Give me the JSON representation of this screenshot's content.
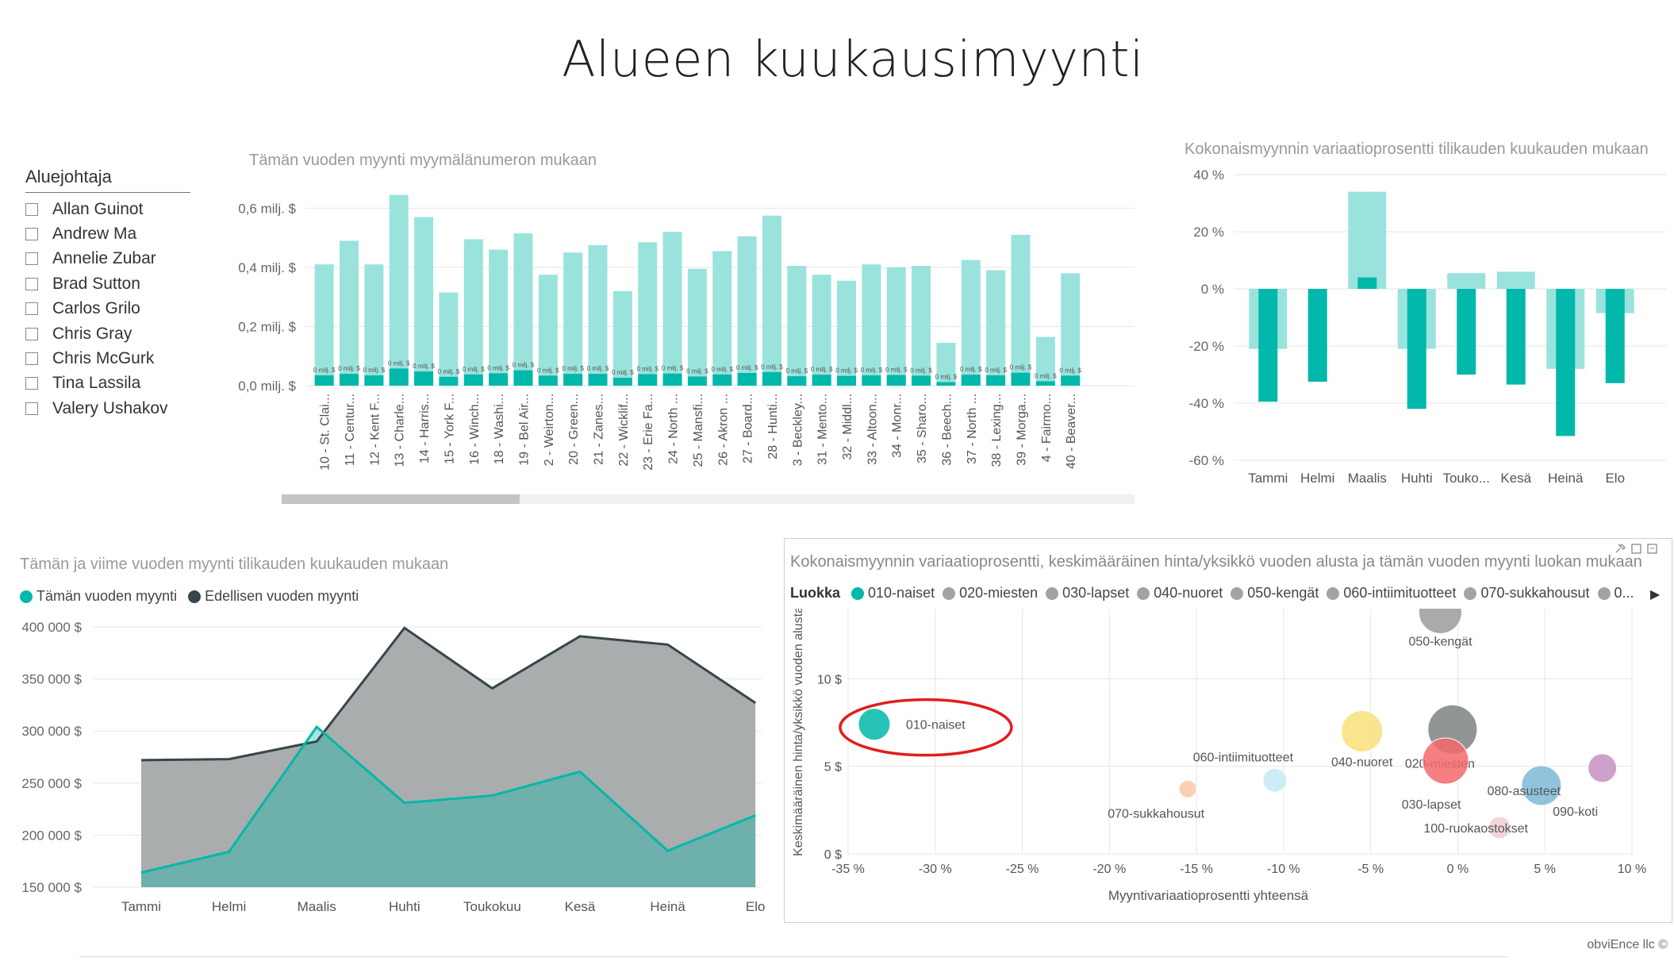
{
  "page": {
    "title": "Alueen kuukausimyynti",
    "footer": "obviEnce llc ©"
  },
  "slicer": {
    "title": "Aluejohtaja",
    "items": [
      "Allan Guinot",
      "Andrew Ma",
      "Annelie Zubar",
      "Brad Sutton",
      "Carlos Grilo",
      "Chris Gray",
      "Chris McGurk",
      "Tina Lassila",
      "Valery Ushakov"
    ]
  },
  "colors": {
    "teal": "#01B8AA",
    "teal_light": "#9AE3DD",
    "dark": "#374649",
    "grey_area": "#A9ADAE",
    "grid": "#e6e6e6"
  },
  "chart_data": [
    {
      "id": "store_bar",
      "type": "bar",
      "title": "Tämän vuoden myynti myymälänumeron mukaan",
      "categories": [
        "10 - St. Clai...",
        "11 - Centur...",
        "12 - Kent F...",
        "13 - Charle...",
        "14 - Harris...",
        "15 - York F...",
        "16 - Winch...",
        "18 - Washi...",
        "19 - Bel Air...",
        "2 - Weirton...",
        "20 - Green...",
        "21 - Zanes...",
        "22 - Wicklif...",
        "23 - Erie Fa...",
        "24 - North ...",
        "25 - Mansfi...",
        "26 - Akron ...",
        "27 - Board...",
        "28 - Hunti...",
        "3 - Beckley...",
        "31 - Mento...",
        "32 - Middl...",
        "33 - Altoon...",
        "34 - Monr...",
        "35 - Sharo...",
        "36 - Beech...",
        "37 - North ...",
        "38 - Lexing...",
        "39 - Morga...",
        "4 - Fairmo...",
        "40 - Beaver..."
      ],
      "series": [
        {
          "values": [
            0.41,
            0.49,
            0.41,
            0.645,
            0.57,
            0.315,
            0.495,
            0.46,
            0.515,
            0.375,
            0.45,
            0.475,
            0.32,
            0.485,
            0.52,
            0.395,
            0.455,
            0.505,
            0.575,
            0.405,
            0.375,
            0.355,
            0.41,
            0.4,
            0.405,
            0.145,
            0.425,
            0.39,
            0.51,
            0.165,
            0.38
          ]
        },
        {
          "values": [
            0.035,
            0.04,
            0.035,
            0.058,
            0.048,
            0.03,
            0.038,
            0.042,
            0.052,
            0.034,
            0.04,
            0.04,
            0.027,
            0.039,
            0.041,
            0.031,
            0.038,
            0.043,
            0.046,
            0.032,
            0.037,
            0.033,
            0.035,
            0.036,
            0.034,
            0.012,
            0.037,
            0.035,
            0.044,
            0.015,
            0.034
          ]
        }
      ],
      "data_label": "0 milj. $",
      "yticks": [
        "0,0 milj. $",
        "0,2 milj. $",
        "0,4 milj. $",
        "0,6 milj. $"
      ],
      "ylim": [
        0,
        0.66
      ]
    },
    {
      "id": "variance_bar",
      "type": "bar",
      "title": "Kokonaismyynnin variaatioprosentti tilikauden kuukauden mukaan",
      "categories": [
        "Tammi",
        "Helmi",
        "Maalis",
        "Huhti",
        "Touko...",
        "Kesä",
        "Heinä",
        "Elo"
      ],
      "series": [
        {
          "values": [
            -21,
            0,
            34,
            -21,
            5.5,
            6,
            -28,
            -8.5
          ]
        },
        {
          "values": [
            -39.5,
            -32.5,
            4,
            -42,
            -30,
            -33.5,
            -51.5,
            -33
          ]
        }
      ],
      "yticks": [
        "40 %",
        "20 %",
        "0 %",
        "-20 %",
        "-40 %",
        "-60 %"
      ],
      "ylim": [
        -60,
        40
      ]
    },
    {
      "id": "sales_area",
      "type": "area",
      "title": "Tämän ja viime vuoden myynti tilikauden kuukauden mukaan",
      "categories": [
        "Tammi",
        "Helmi",
        "Maalis",
        "Huhti",
        "Toukokuu",
        "Kesä",
        "Heinä",
        "Elo"
      ],
      "series": [
        {
          "name": "Tämän vuoden myynti",
          "values": [
            164000,
            184000,
            304000,
            231000,
            238000,
            261000,
            185000,
            219000
          ]
        },
        {
          "name": "Edellisen vuoden myynti",
          "values": [
            272000,
            273000,
            290000,
            399000,
            341000,
            391000,
            383000,
            327000
          ]
        }
      ],
      "yticks": [
        "150 000 $",
        "200 000 $",
        "250 000 $",
        "300 000 $",
        "350 000 $",
        "400 000 $"
      ],
      "ylim": [
        150000,
        400000
      ]
    },
    {
      "id": "category_scatter",
      "type": "scatter",
      "title": "Kokonaismyynnin variaatioprosentti, keskimääräinen hinta/yksikkö vuoden alusta ja tämän vuoden myynti luokan mukaan",
      "legend_title": "Luokka",
      "legend": [
        "010-naiset",
        "020-miesten",
        "030-lapset",
        "040-nuoret",
        "050-kengät",
        "060-intiimituotteet",
        "070-sukkahousut",
        "0..."
      ],
      "xlabel": "Myyntivariaatioprosentti yhteensä",
      "ylabel": "Keskimääräinen hinta/yksikkö vuoden alusta",
      "xticks": [
        "-35 %",
        "-30 %",
        "-25 %",
        "-20 %",
        "-15 %",
        "-10 %",
        "-5 %",
        "0 %",
        "5 %",
        "10 %"
      ],
      "yticks": [
        "0 $",
        "5 $",
        "10 $"
      ],
      "xlim": [
        -35,
        10
      ],
      "ylim": [
        0,
        14
      ],
      "points": [
        {
          "label": "010-naiset",
          "x": -33.5,
          "y": 7.4,
          "size": 20,
          "color": "#01B8AA"
        },
        {
          "label": "050-kengät",
          "x": -1.0,
          "y": 13.8,
          "size": 27,
          "color": "#9a9c9b"
        },
        {
          "label": "040-nuoret",
          "x": -5.5,
          "y": 7.0,
          "size": 26,
          "color": "#F7E07A"
        },
        {
          "label": "020-miesten",
          "x": -0.3,
          "y": 7.1,
          "size": 31,
          "color": "#7f8283"
        },
        {
          "label": "030-lapset",
          "x": -0.7,
          "y": 5.3,
          "size": 29,
          "color": "#F5696B"
        },
        {
          "label": "060-intiimituotteet",
          "x": -10.5,
          "y": 4.2,
          "size": 15,
          "color": "#C6E9F5"
        },
        {
          "label": "070-sukkahousut",
          "x": -15.5,
          "y": 3.7,
          "size": 11,
          "color": "#FBC8A8"
        },
        {
          "label": "080-asusteet",
          "x": 4.8,
          "y": 3.9,
          "size": 25,
          "color": "#7EB8D6"
        },
        {
          "label": "090-koti",
          "x": 8.3,
          "y": 4.9,
          "size": 18,
          "color": "#C591C4"
        },
        {
          "label": "100-ruokaostokset",
          "x": 2.4,
          "y": 1.5,
          "size": 14,
          "color": "#F0D0D4"
        }
      ]
    }
  ]
}
